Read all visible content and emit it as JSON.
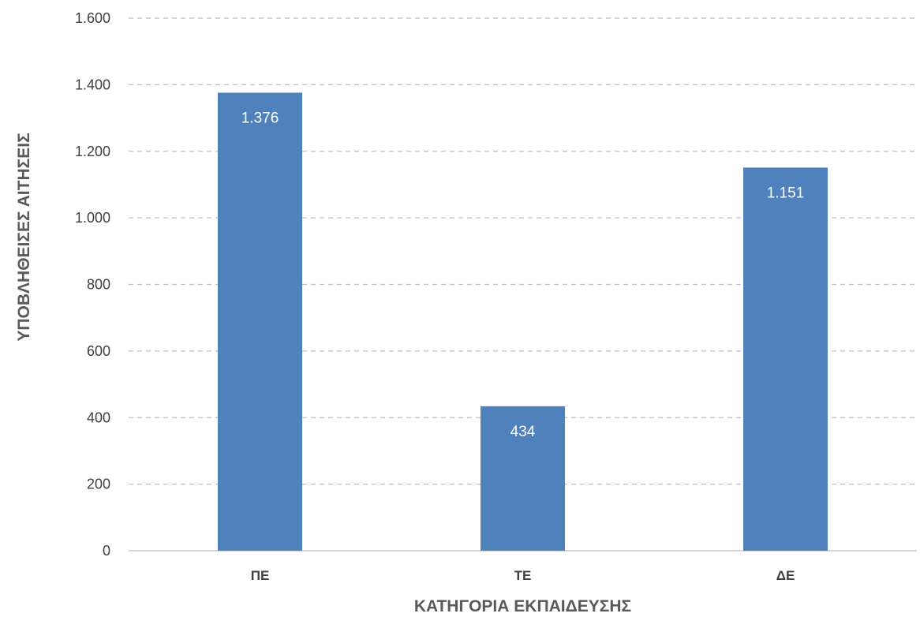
{
  "chart_data": {
    "type": "bar",
    "categories": [
      "ΠΕ",
      "ΤΕ",
      "ΔΕ"
    ],
    "values": [
      1376,
      434,
      1151
    ],
    "data_labels": [
      "1.376",
      "434",
      "1.151"
    ],
    "xlabel": "ΚΑΤΗΓΟΡΙΑ ΕΚΠΑΙΔΕΥΣΗΣ",
    "ylabel": "ΥΠΟΒΛΗΘΕΙΣΕΣ ΑΙΤΗΣΕΙΣ",
    "ylim": [
      0,
      1600
    ],
    "yticks": [
      0,
      200,
      400,
      600,
      800,
      1000,
      1200,
      1400,
      1600
    ],
    "ytick_labels": [
      "0",
      "200",
      "400",
      "600",
      "800",
      "1.000",
      "1.200",
      "1.400",
      "1.600"
    ],
    "grid": true,
    "bar_color": "#4f81bd"
  }
}
